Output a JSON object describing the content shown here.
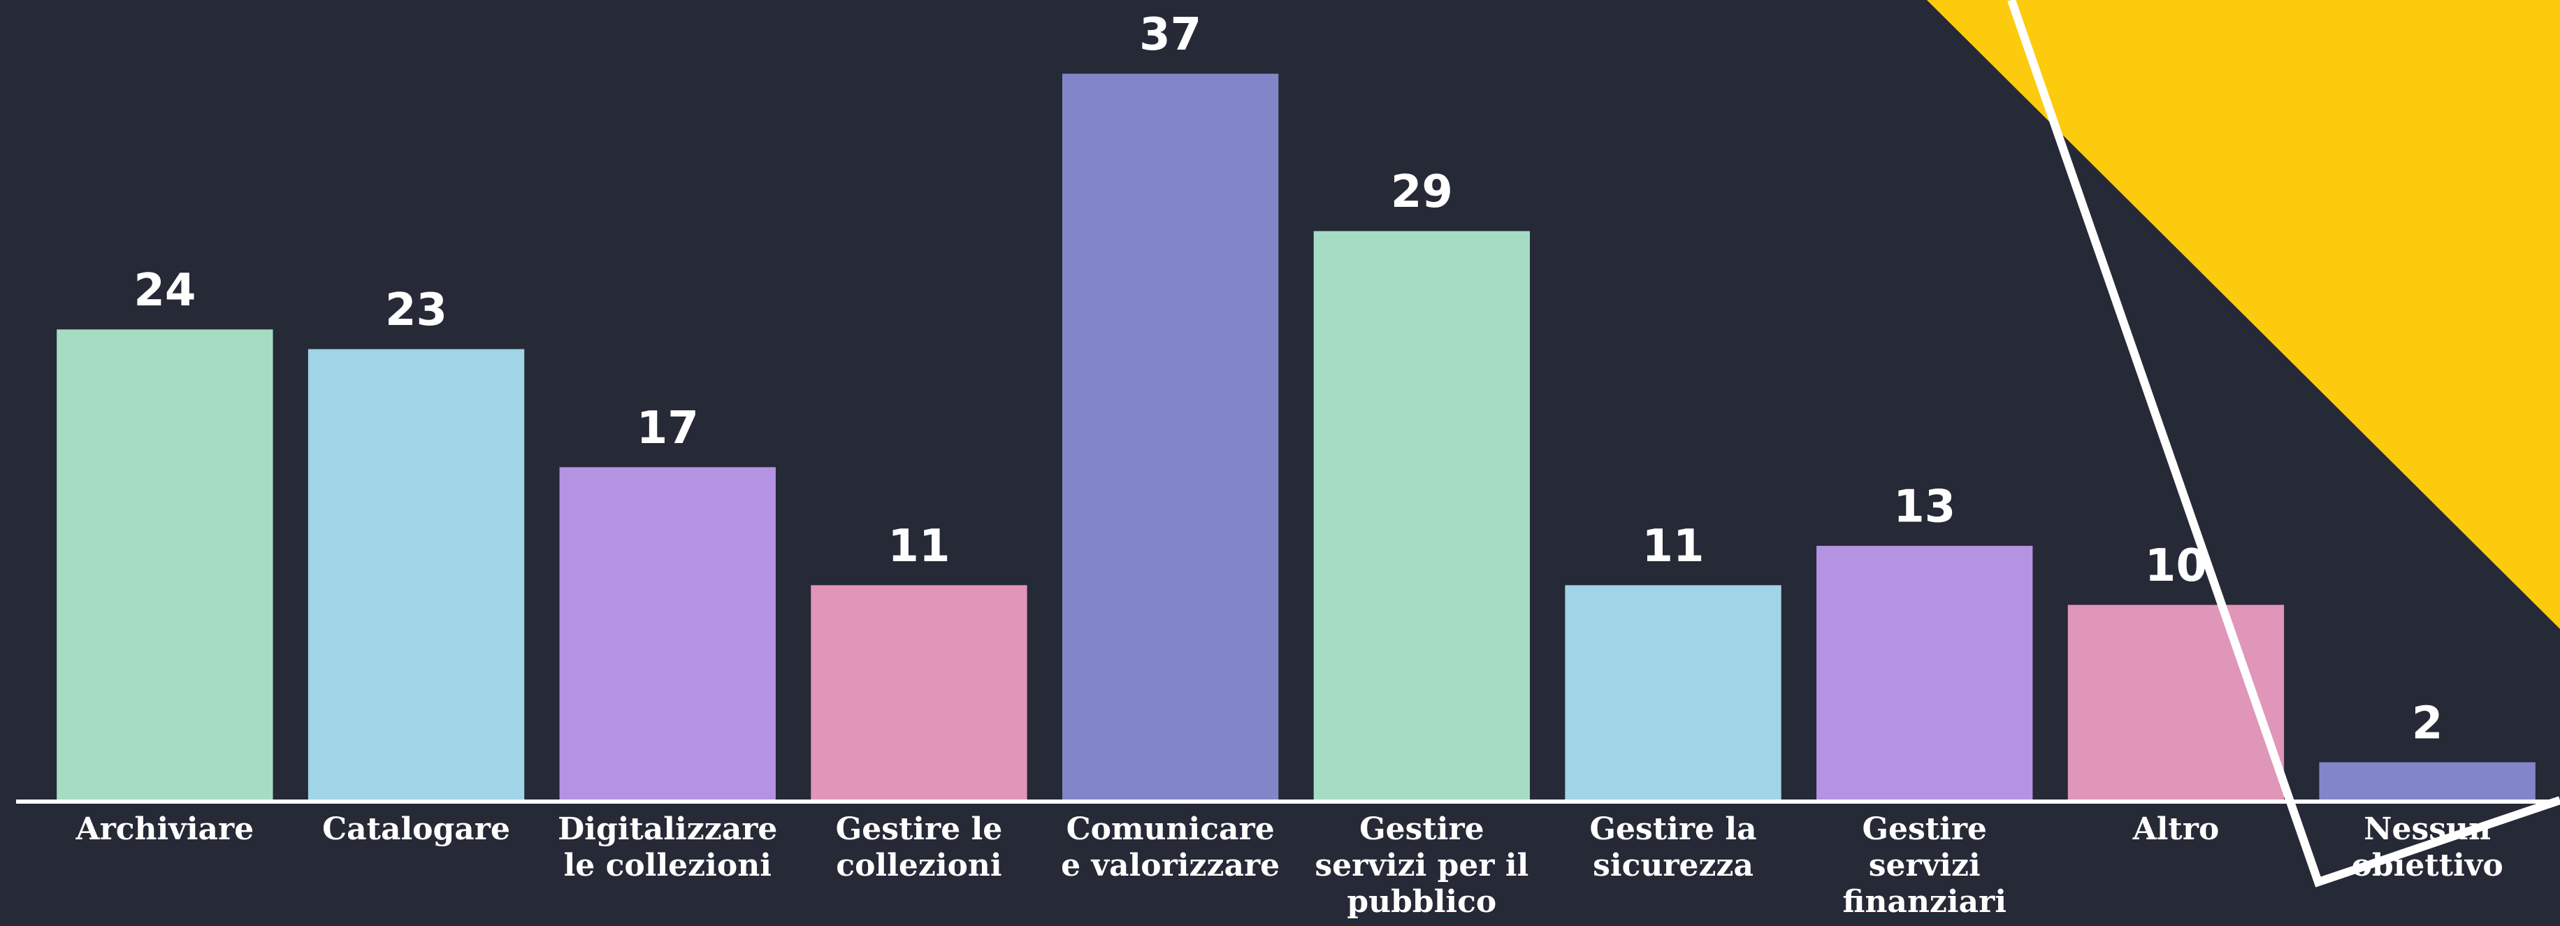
{
  "chart_data": {
    "type": "bar",
    "categories": [
      "Archiviare",
      "Catalogare",
      "Digitalizzare\nle collezioni",
      "Gestire le\ncollezioni",
      "Comunicare\ne valorizzare",
      "Gestire\nservizi per il\npubblico",
      "Gestire la\nsicurezza",
      "Gestire\nservizi\nfinanziari",
      "Altro",
      "Nessun\nobiettivo"
    ],
    "values": [
      24,
      23,
      17,
      11,
      37,
      29,
      11,
      13,
      10,
      2
    ],
    "colors": [
      "#a6dcc4",
      "#a0d4e6",
      "#b593e3",
      "#df96b9",
      "#8286c8",
      "#a6dcc4",
      "#a0d4e6",
      "#b593e3",
      "#df96b9",
      "#8286c8"
    ],
    "ylim": [
      0,
      40
    ]
  }
}
